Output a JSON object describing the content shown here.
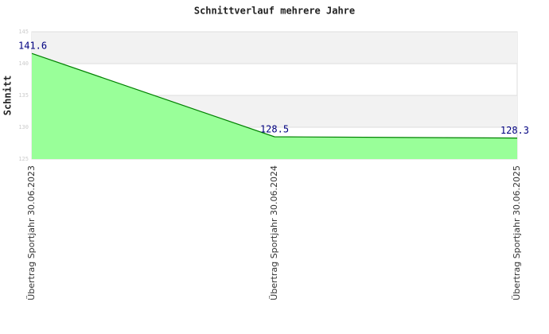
{
  "chart_data": {
    "type": "area",
    "title": "Schnittverlauf mehrere Jahre",
    "y_label": "Schnitt",
    "categories": [
      "Übertrag Sportjahr 30.06.2023",
      "Übertrag Sportjahr 30.06.2024",
      "Übertrag Sportjahr 30.06.2025"
    ],
    "series": [
      {
        "name": "Schnitt",
        "color": "#008000",
        "fill": "#99ff99",
        "values": [
          141.6,
          128.5,
          128.3
        ]
      }
    ],
    "ylim": [
      125,
      145
    ],
    "yticks": [
      125,
      130,
      135,
      140,
      145
    ],
    "grid": true
  }
}
